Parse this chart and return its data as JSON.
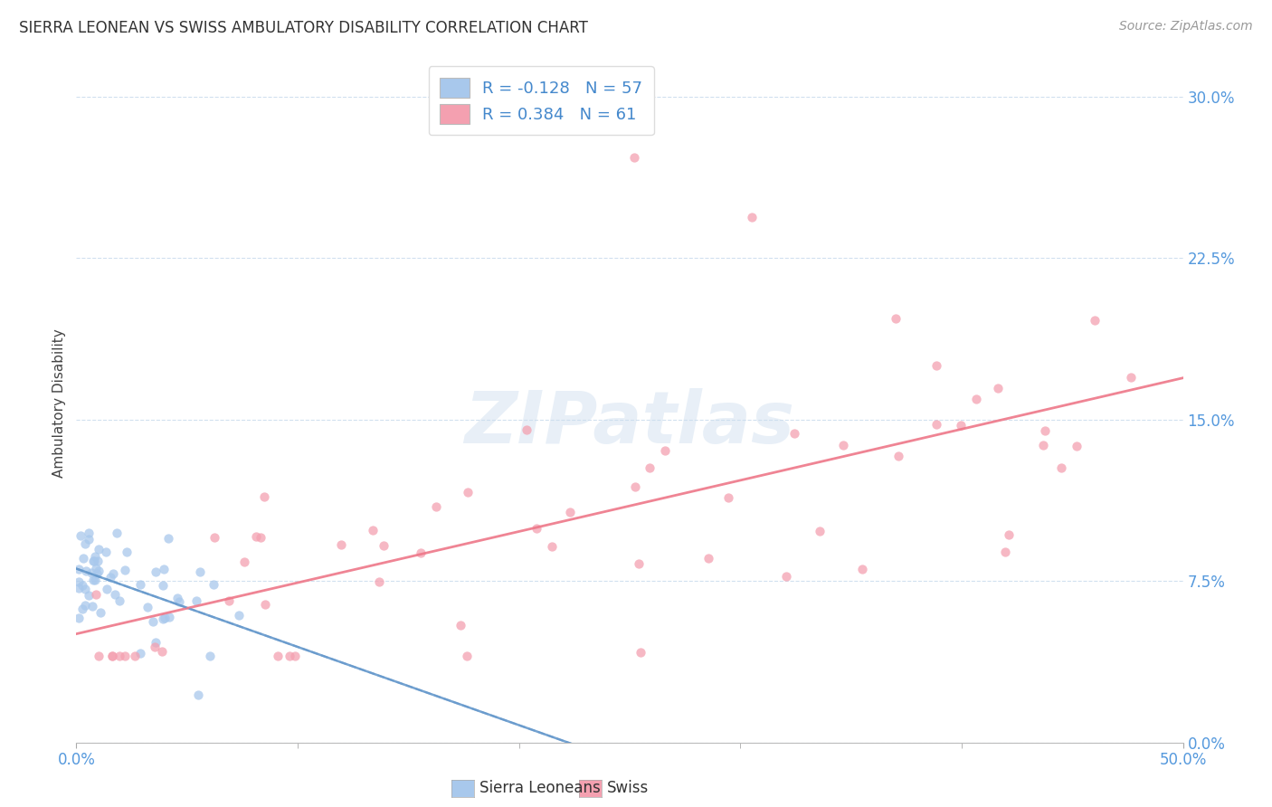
{
  "title": "SIERRA LEONEAN VS SWISS AMBULATORY DISABILITY CORRELATION CHART",
  "source": "Source: ZipAtlas.com",
  "xlim": [
    0.0,
    0.5
  ],
  "ylim": [
    0.0,
    0.315
  ],
  "ylabel": "Ambulatory Disability",
  "legend_label1": "Sierra Leoneans",
  "legend_label2": "Swiss",
  "r1": -0.128,
  "n1": 57,
  "r2": 0.384,
  "n2": 61,
  "color_blue": "#A8C8EC",
  "color_pink": "#F4A0B0",
  "color_blue_line": "#6699CC",
  "color_pink_line": "#EE7788",
  "color_blue_text": "#4488CC",
  "color_axis_text": "#5599DD",
  "grid_color": "#CCDDEE",
  "bg_color": "#FFFFFF",
  "watermark_color": "#CCDDEEBB",
  "title_fontsize": 12,
  "source_fontsize": 10,
  "tick_fontsize": 12,
  "legend_fontsize": 13
}
